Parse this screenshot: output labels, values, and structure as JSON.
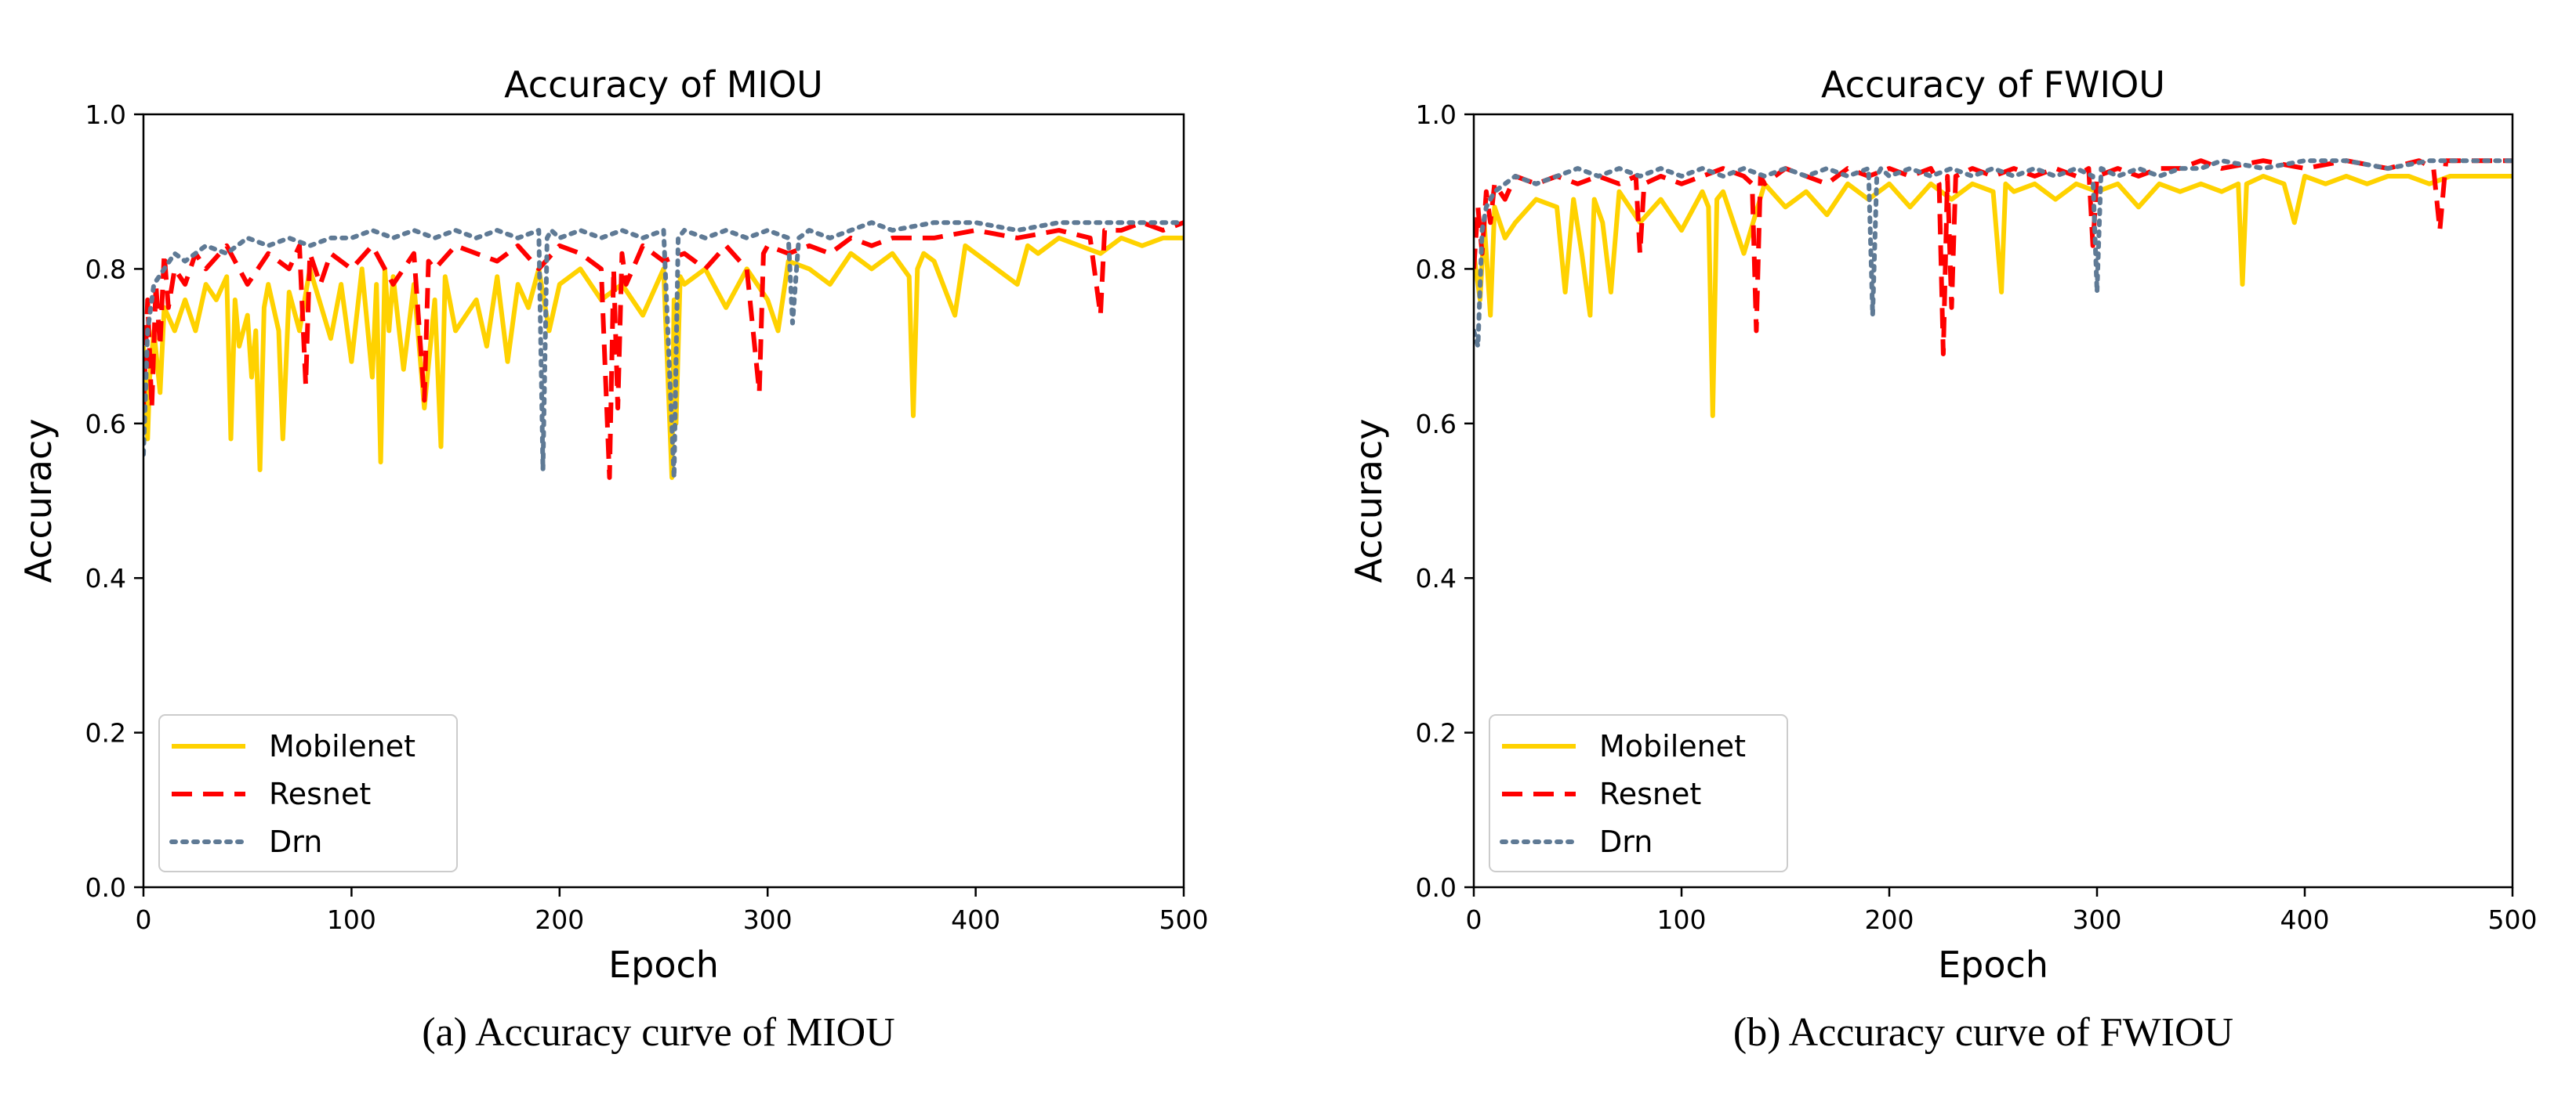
{
  "colors": {
    "mobilenet": "#FFD200",
    "resnet": "#FF0000",
    "drn": "#5F7A95",
    "background": "#ffffff"
  },
  "series_styles": [
    {
      "name": "Mobilenet",
      "line": "solid"
    },
    {
      "name": "Resnet",
      "line": "dashed"
    },
    {
      "name": "Drn",
      "line": "dotted"
    }
  ],
  "chart_data": [
    {
      "type": "line",
      "title": "Accuracy of MIOU",
      "caption": "(a) Accuracy curve of MIOU",
      "xlabel": "Epoch",
      "ylabel": "Accuracy",
      "xlim": [
        0,
        500
      ],
      "ylim": [
        0.0,
        1.0
      ],
      "xticks": [
        0,
        100,
        200,
        300,
        400,
        500
      ],
      "yticks": [
        0.0,
        0.2,
        0.4,
        0.6,
        0.8,
        1.0
      ],
      "legend": {
        "position": "lower-left",
        "entries": [
          "Mobilenet",
          "Resnet",
          "Drn"
        ]
      },
      "series": [
        {
          "name": "Mobilenet",
          "x": [
            0,
            2,
            3,
            5,
            8,
            10,
            15,
            20,
            25,
            30,
            35,
            40,
            42,
            44,
            46,
            50,
            52,
            54,
            56,
            58,
            60,
            65,
            67,
            70,
            75,
            80,
            90,
            95,
            100,
            105,
            110,
            112,
            114,
            116,
            118,
            120,
            125,
            130,
            135,
            140,
            143,
            145,
            150,
            160,
            165,
            170,
            175,
            180,
            185,
            190,
            195,
            200,
            210,
            220,
            230,
            240,
            250,
            254,
            255,
            256,
            258,
            260,
            270,
            280,
            290,
            300,
            305,
            310,
            320,
            330,
            340,
            350,
            360,
            368,
            370,
            372,
            375,
            380,
            390,
            395,
            400,
            410,
            420,
            425,
            430,
            440,
            450,
            460,
            470,
            480,
            490,
            500
          ],
          "values": [
            0.7,
            0.58,
            0.66,
            0.72,
            0.64,
            0.75,
            0.72,
            0.76,
            0.72,
            0.78,
            0.76,
            0.79,
            0.58,
            0.76,
            0.7,
            0.74,
            0.66,
            0.72,
            0.54,
            0.75,
            0.78,
            0.72,
            0.58,
            0.77,
            0.72,
            0.8,
            0.71,
            0.78,
            0.68,
            0.8,
            0.66,
            0.78,
            0.55,
            0.8,
            0.72,
            0.79,
            0.67,
            0.78,
            0.62,
            0.76,
            0.57,
            0.79,
            0.72,
            0.76,
            0.7,
            0.79,
            0.68,
            0.78,
            0.75,
            0.8,
            0.72,
            0.78,
            0.8,
            0.76,
            0.78,
            0.74,
            0.8,
            0.53,
            0.76,
            0.6,
            0.79,
            0.78,
            0.8,
            0.75,
            0.8,
            0.76,
            0.72,
            0.81,
            0.8,
            0.78,
            0.82,
            0.8,
            0.82,
            0.79,
            0.61,
            0.8,
            0.82,
            0.81,
            0.74,
            0.83,
            0.82,
            0.8,
            0.78,
            0.83,
            0.82,
            0.84,
            0.83,
            0.82,
            0.84,
            0.83,
            0.84,
            0.84
          ]
        },
        {
          "name": "Resnet",
          "x": [
            0,
            2,
            4,
            6,
            8,
            10,
            12,
            15,
            20,
            25,
            30,
            40,
            50,
            60,
            70,
            75,
            78,
            80,
            85,
            90,
            100,
            110,
            120,
            130,
            135,
            137,
            140,
            150,
            160,
            170,
            180,
            190,
            200,
            210,
            220,
            224,
            226,
            228,
            230,
            232,
            240,
            250,
            260,
            270,
            280,
            290,
            296,
            298,
            300,
            310,
            320,
            330,
            340,
            350,
            360,
            380,
            400,
            420,
            440,
            455,
            460,
            462,
            465,
            470,
            480,
            490,
            500
          ],
          "values": [
            0.62,
            0.76,
            0.62,
            0.78,
            0.7,
            0.82,
            0.75,
            0.8,
            0.78,
            0.82,
            0.8,
            0.83,
            0.78,
            0.82,
            0.8,
            0.83,
            0.65,
            0.82,
            0.78,
            0.82,
            0.8,
            0.83,
            0.78,
            0.82,
            0.63,
            0.81,
            0.8,
            0.83,
            0.82,
            0.81,
            0.83,
            0.8,
            0.83,
            0.82,
            0.8,
            0.53,
            0.8,
            0.62,
            0.82,
            0.78,
            0.83,
            0.81,
            0.82,
            0.8,
            0.83,
            0.8,
            0.64,
            0.82,
            0.83,
            0.82,
            0.83,
            0.82,
            0.84,
            0.83,
            0.84,
            0.84,
            0.85,
            0.84,
            0.85,
            0.84,
            0.74,
            0.85,
            0.85,
            0.85,
            0.86,
            0.85,
            0.86
          ]
        },
        {
          "name": "Drn",
          "x": [
            0,
            2,
            5,
            10,
            15,
            20,
            30,
            40,
            50,
            60,
            70,
            80,
            90,
            100,
            110,
            120,
            130,
            140,
            150,
            160,
            170,
            180,
            190,
            192,
            194,
            196,
            200,
            210,
            220,
            230,
            240,
            250,
            255,
            257,
            260,
            270,
            280,
            290,
            300,
            310,
            312,
            315,
            320,
            330,
            340,
            350,
            360,
            380,
            400,
            420,
            440,
            460,
            480,
            500
          ],
          "values": [
            0.56,
            0.72,
            0.78,
            0.8,
            0.82,
            0.81,
            0.83,
            0.82,
            0.84,
            0.83,
            0.84,
            0.83,
            0.84,
            0.84,
            0.85,
            0.84,
            0.85,
            0.84,
            0.85,
            0.84,
            0.85,
            0.84,
            0.85,
            0.54,
            0.84,
            0.85,
            0.84,
            0.85,
            0.84,
            0.85,
            0.84,
            0.85,
            0.53,
            0.84,
            0.85,
            0.84,
            0.85,
            0.84,
            0.85,
            0.84,
            0.73,
            0.84,
            0.85,
            0.84,
            0.85,
            0.86,
            0.85,
            0.86,
            0.86,
            0.85,
            0.86,
            0.86,
            0.86,
            0.86
          ]
        }
      ]
    },
    {
      "type": "line",
      "title": "Accuracy of FWIOU",
      "caption": "(b) Accuracy curve of FWIOU",
      "xlabel": "Epoch",
      "ylabel": "Accuracy",
      "xlim": [
        0,
        500
      ],
      "ylim": [
        0.0,
        1.0
      ],
      "xticks": [
        0,
        100,
        200,
        300,
        400,
        500
      ],
      "yticks": [
        0.0,
        0.2,
        0.4,
        0.6,
        0.8,
        1.0
      ],
      "legend": {
        "position": "lower-left",
        "entries": [
          "Mobilenet",
          "Resnet",
          "Drn"
        ]
      },
      "series": [
        {
          "name": "Mobilenet",
          "x": [
            0,
            3,
            5,
            8,
            10,
            15,
            20,
            30,
            40,
            44,
            48,
            52,
            56,
            58,
            62,
            66,
            70,
            80,
            90,
            100,
            110,
            113,
            115,
            117,
            120,
            130,
            140,
            150,
            160,
            170,
            180,
            190,
            200,
            210,
            220,
            230,
            240,
            250,
            254,
            256,
            260,
            270,
            280,
            290,
            300,
            310,
            320,
            330,
            340,
            350,
            360,
            368,
            370,
            372,
            380,
            390,
            395,
            400,
            410,
            420,
            430,
            440,
            450,
            460,
            470,
            480,
            490,
            500
          ],
          "values": [
            0.82,
            0.76,
            0.86,
            0.74,
            0.88,
            0.84,
            0.86,
            0.89,
            0.88,
            0.77,
            0.89,
            0.82,
            0.74,
            0.89,
            0.86,
            0.77,
            0.9,
            0.86,
            0.89,
            0.85,
            0.9,
            0.88,
            0.61,
            0.89,
            0.9,
            0.82,
            0.91,
            0.88,
            0.9,
            0.87,
            0.91,
            0.89,
            0.91,
            0.88,
            0.91,
            0.89,
            0.91,
            0.9,
            0.77,
            0.91,
            0.9,
            0.91,
            0.89,
            0.91,
            0.9,
            0.91,
            0.88,
            0.91,
            0.9,
            0.91,
            0.9,
            0.91,
            0.78,
            0.91,
            0.92,
            0.91,
            0.86,
            0.92,
            0.91,
            0.92,
            0.91,
            0.92,
            0.92,
            0.91,
            0.92,
            0.92,
            0.92,
            0.92
          ]
        },
        {
          "name": "Resnet",
          "x": [
            0,
            2,
            4,
            6,
            8,
            10,
            15,
            20,
            30,
            40,
            50,
            60,
            70,
            78,
            80,
            82,
            90,
            100,
            110,
            120,
            130,
            134,
            136,
            138,
            140,
            150,
            160,
            170,
            180,
            190,
            200,
            210,
            220,
            224,
            226,
            228,
            230,
            232,
            240,
            250,
            260,
            270,
            280,
            290,
            296,
            298,
            300,
            310,
            320,
            330,
            340,
            350,
            360,
            380,
            400,
            420,
            440,
            455,
            462,
            465,
            468,
            480,
            490,
            500
          ],
          "values": [
            0.8,
            0.88,
            0.82,
            0.9,
            0.86,
            0.91,
            0.89,
            0.92,
            0.91,
            0.92,
            0.91,
            0.92,
            0.91,
            0.92,
            0.82,
            0.91,
            0.92,
            0.91,
            0.92,
            0.93,
            0.92,
            0.91,
            0.72,
            0.92,
            0.91,
            0.93,
            0.92,
            0.91,
            0.93,
            0.92,
            0.93,
            0.92,
            0.93,
            0.91,
            0.69,
            0.92,
            0.75,
            0.92,
            0.93,
            0.92,
            0.93,
            0.92,
            0.93,
            0.92,
            0.93,
            0.83,
            0.92,
            0.93,
            0.92,
            0.93,
            0.93,
            0.94,
            0.93,
            0.94,
            0.93,
            0.94,
            0.93,
            0.94,
            0.93,
            0.85,
            0.94,
            0.94,
            0.94,
            0.94
          ]
        },
        {
          "name": "Drn",
          "x": [
            0,
            2,
            4,
            6,
            10,
            15,
            20,
            30,
            40,
            50,
            60,
            70,
            80,
            90,
            100,
            110,
            120,
            130,
            140,
            150,
            160,
            170,
            180,
            190,
            192,
            194,
            196,
            200,
            210,
            220,
            230,
            240,
            250,
            260,
            270,
            280,
            290,
            298,
            300,
            302,
            310,
            320,
            330,
            340,
            350,
            360,
            380,
            400,
            420,
            440,
            460,
            480,
            500
          ],
          "values": [
            0.72,
            0.7,
            0.85,
            0.88,
            0.9,
            0.91,
            0.92,
            0.91,
            0.92,
            0.93,
            0.92,
            0.93,
            0.92,
            0.93,
            0.92,
            0.93,
            0.92,
            0.93,
            0.92,
            0.93,
            0.92,
            0.93,
            0.92,
            0.93,
            0.74,
            0.92,
            0.93,
            0.92,
            0.93,
            0.92,
            0.93,
            0.92,
            0.93,
            0.92,
            0.93,
            0.92,
            0.93,
            0.92,
            0.77,
            0.93,
            0.92,
            0.93,
            0.92,
            0.93,
            0.93,
            0.94,
            0.93,
            0.94,
            0.94,
            0.93,
            0.94,
            0.94,
            0.94
          ]
        }
      ]
    }
  ]
}
